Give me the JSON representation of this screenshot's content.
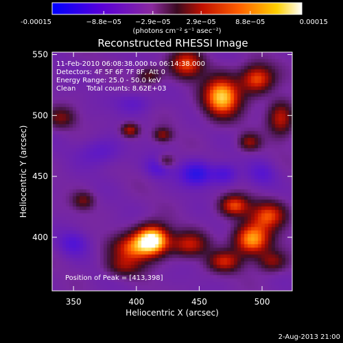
{
  "colorbar": {
    "tick_labels": [
      "-0.00015",
      "−8.8e−05",
      "−2.9e−05",
      "2.9e−05",
      "8.8e−05",
      "0.00015"
    ],
    "tick_values": [
      -0.00015,
      -8.8e-05,
      -2.9e-05,
      2.9e-05,
      8.8e-05,
      0.00015
    ],
    "range": [
      -0.00015,
      0.00015
    ],
    "units_label": "(photons cm⁻² s⁻¹ asec⁻²)"
  },
  "chart_data": {
    "type": "heatmap",
    "title": "Reconstructed RHESSI Image",
    "xlabel": "Heliocentric X (arcsec)",
    "ylabel": "Heliocentric Y (arcsec)",
    "xlim": [
      333,
      524
    ],
    "ylim": [
      356,
      552
    ],
    "x_ticks": [
      350,
      400,
      450,
      500
    ],
    "y_ticks": [
      400,
      450,
      500,
      550
    ],
    "x_tick_labels": [
      "350",
      "400",
      "450",
      "500"
    ],
    "y_tick_labels": [
      "400",
      "450",
      "500",
      "550"
    ],
    "annotations": [
      "11-Feb-2010 06:08:38.000 to 06:14:38.000",
      "Detectors: 4F 5F 6F 7F 8F, Att 0",
      "Energy Range: 25.0 - 50.0 keV",
      "Clean     Total counts: 8.62E+03"
    ],
    "peak_label": "Position of Peak = [413,398]",
    "peak": [
      413,
      398
    ],
    "colormap": "rhessi-blue-purple-red-yellow-white",
    "sources": [
      {
        "x": 413,
        "y": 398,
        "sx": 9,
        "sy": 8,
        "amp": 1.0
      },
      {
        "x": 398,
        "y": 391,
        "sx": 12,
        "sy": 8,
        "amp": 0.55
      },
      {
        "x": 442,
        "y": 394,
        "sx": 10,
        "sy": 7,
        "amp": 0.45
      },
      {
        "x": 390,
        "y": 376,
        "sx": 10,
        "sy": 6,
        "amp": 0.3
      },
      {
        "x": 470,
        "y": 380,
        "sx": 9,
        "sy": 6,
        "amp": 0.45
      },
      {
        "x": 492,
        "y": 398,
        "sx": 10,
        "sy": 9,
        "amp": 0.75
      },
      {
        "x": 505,
        "y": 418,
        "sx": 10,
        "sy": 8,
        "amp": 0.55
      },
      {
        "x": 478,
        "y": 426,
        "sx": 8,
        "sy": 6,
        "amp": 0.55
      },
      {
        "x": 508,
        "y": 380,
        "sx": 8,
        "sy": 6,
        "amp": 0.35
      },
      {
        "x": 468,
        "y": 515,
        "sx": 10,
        "sy": 11,
        "amp": 0.85
      },
      {
        "x": 496,
        "y": 530,
        "sx": 9,
        "sy": 8,
        "amp": 0.6
      },
      {
        "x": 440,
        "y": 542,
        "sx": 9,
        "sy": 8,
        "amp": 0.55
      },
      {
        "x": 410,
        "y": 533,
        "sx": 7,
        "sy": 5,
        "amp": 0.3
      },
      {
        "x": 515,
        "y": 498,
        "sx": 7,
        "sy": 10,
        "amp": 0.45
      },
      {
        "x": 490,
        "y": 478,
        "sx": 6,
        "sy": 5,
        "amp": 0.35
      },
      {
        "x": 395,
        "y": 488,
        "sx": 5,
        "sy": 4,
        "amp": 0.45
      },
      {
        "x": 421,
        "y": 484,
        "sx": 5,
        "sy": 4,
        "amp": 0.35
      },
      {
        "x": 423,
        "y": 462,
        "sx": 5,
        "sy": 4,
        "amp": 0.35
      },
      {
        "x": 358,
        "y": 430,
        "sx": 6,
        "sy": 5,
        "amp": 0.3
      },
      {
        "x": 340,
        "y": 498,
        "sx": 8,
        "sy": 6,
        "amp": 0.3
      },
      {
        "x": 448,
        "y": 452,
        "sx": 9,
        "sy": 7,
        "amp": -0.45
      },
      {
        "x": 418,
        "y": 458,
        "sx": 7,
        "sy": 6,
        "amp": -0.3
      },
      {
        "x": 470,
        "y": 452,
        "sx": 7,
        "sy": 6,
        "amp": -0.3
      },
      {
        "x": 372,
        "y": 470,
        "sx": 12,
        "sy": 8,
        "amp": -0.2
      },
      {
        "x": 350,
        "y": 395,
        "sx": 8,
        "sy": 7,
        "amp": -0.25
      },
      {
        "x": 398,
        "y": 510,
        "sx": 10,
        "sy": 6,
        "amp": -0.2
      },
      {
        "x": 500,
        "y": 452,
        "sx": 8,
        "sy": 7,
        "amp": -0.2
      }
    ]
  },
  "footer": {
    "date": "2-Aug-2013 21:00"
  }
}
